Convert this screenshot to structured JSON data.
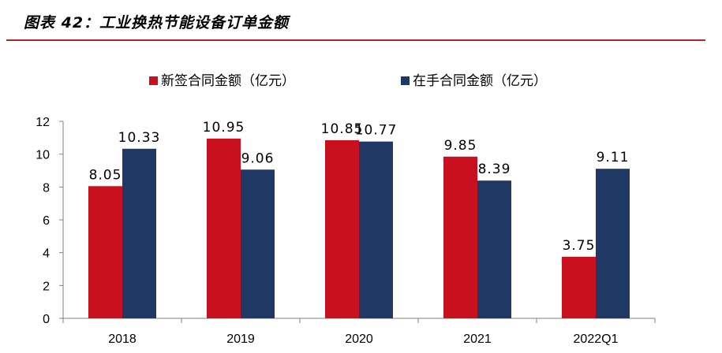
{
  "figure": {
    "title": "图表 42：工业换热节能设备订单金额",
    "accent_color": "#b5252a"
  },
  "chart_data": {
    "type": "bar",
    "categories": [
      "2018",
      "2019",
      "2020",
      "2021",
      "2022Q1"
    ],
    "series": [
      {
        "name": "新签合同金额（亿元）",
        "color": "#c8101e",
        "values": [
          8.05,
          10.95,
          10.85,
          9.85,
          3.75
        ],
        "labels": [
          "8.05",
          "10.95",
          "10.85",
          "9.85",
          "3.75"
        ]
      },
      {
        "name": "在手合同金额（亿元）",
        "color": "#1f3864",
        "values": [
          10.33,
          9.06,
          10.77,
          8.39,
          9.11
        ],
        "labels": [
          "10.33",
          "9.06",
          "10.77",
          "8.39",
          "9.11"
        ]
      }
    ],
    "yticks": [
      "0",
      "2",
      "4",
      "6",
      "8",
      "10",
      "12"
    ],
    "ylim": [
      0,
      12
    ],
    "legend_position": "top-center",
    "grid": false
  }
}
